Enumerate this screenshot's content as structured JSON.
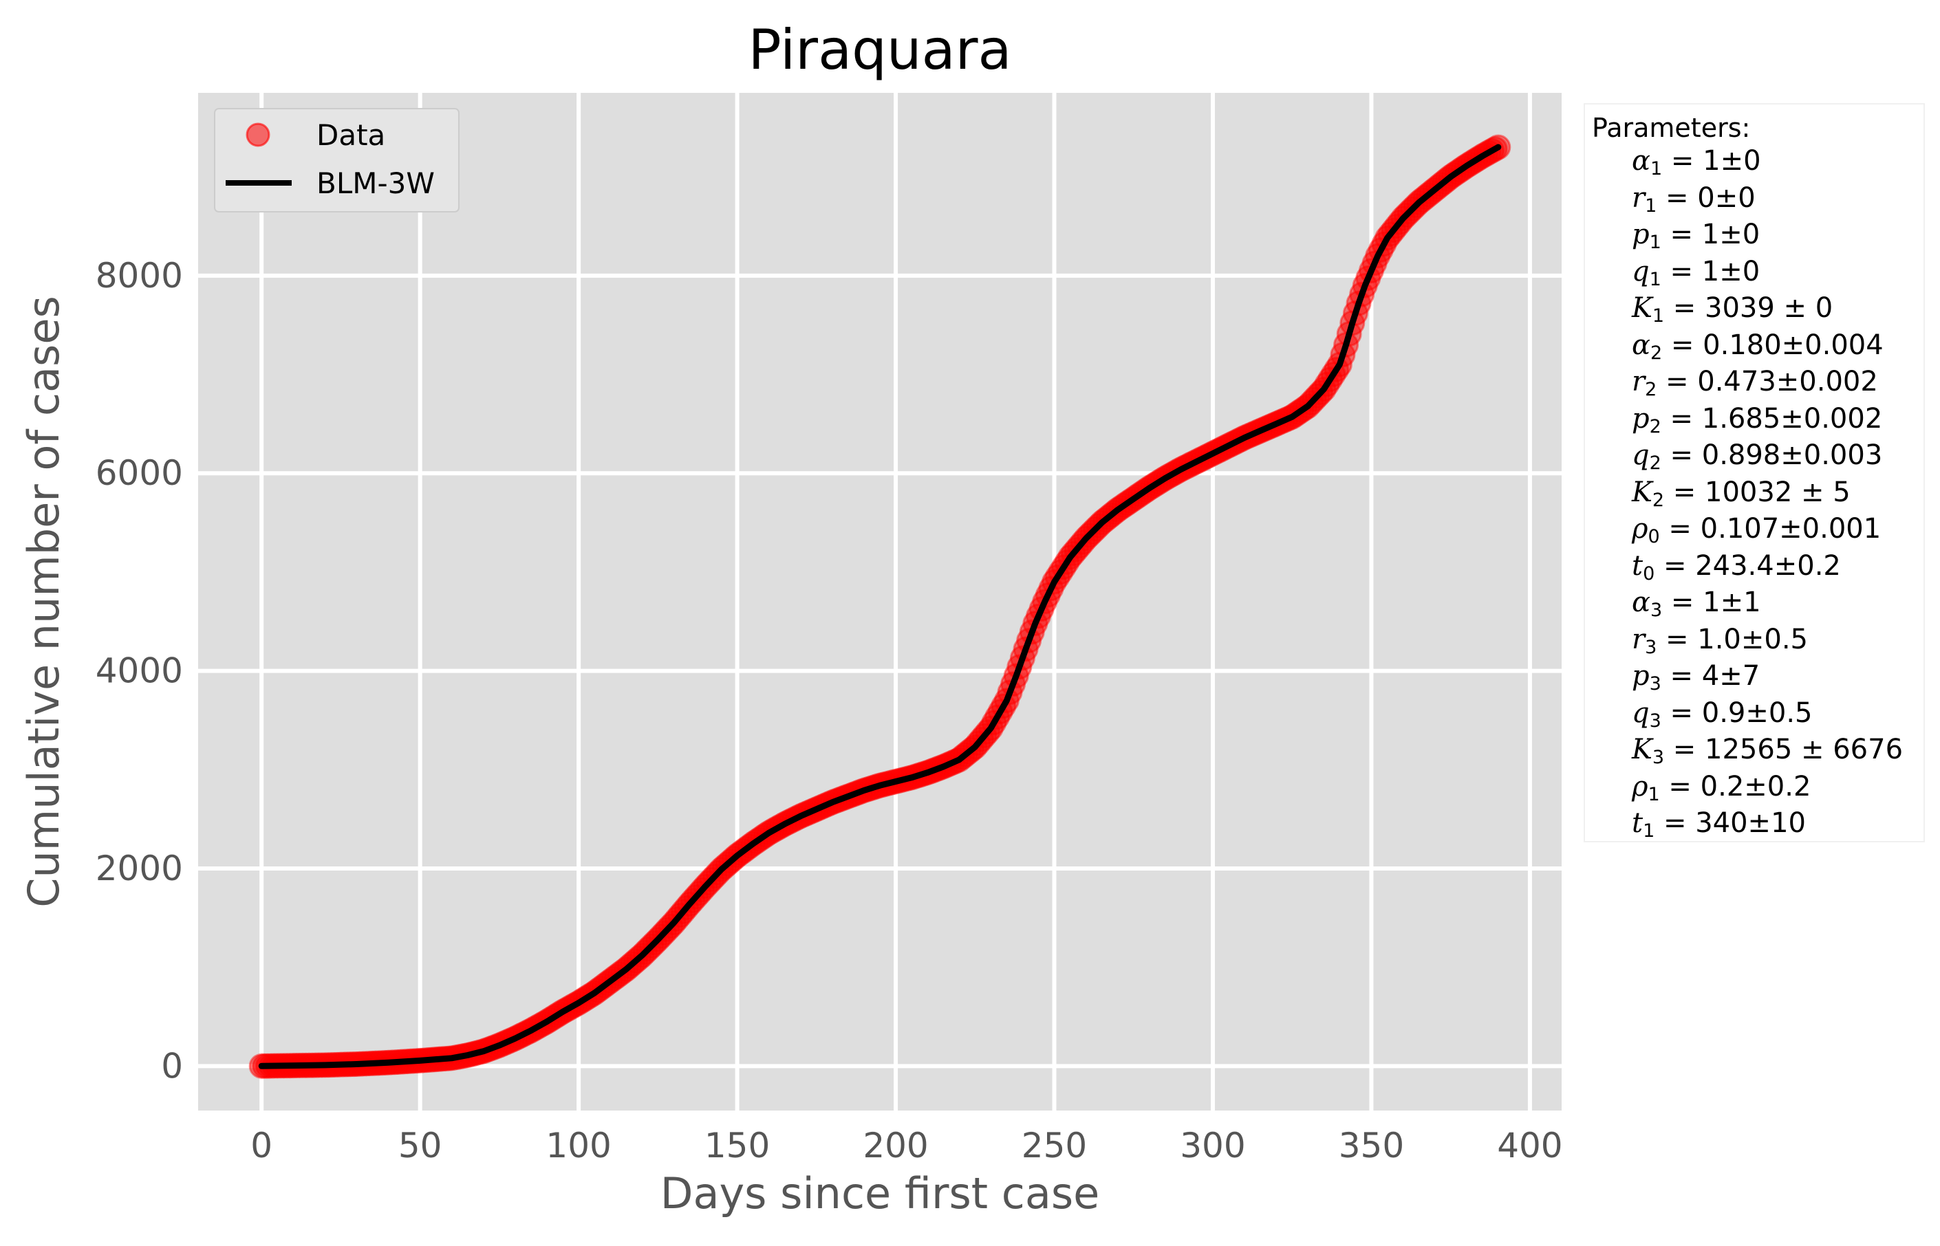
{
  "chart_data": {
    "type": "scatter",
    "title": "Piraquara",
    "xlabel": "Days since first case",
    "ylabel": "Cumulative  number of cases",
    "xlim": [
      -20,
      410
    ],
    "ylim": [
      -450,
      9850
    ],
    "x_ticks": [
      0,
      50,
      100,
      150,
      200,
      250,
      300,
      350,
      400
    ],
    "y_ticks": [
      0,
      2000,
      4000,
      6000,
      8000
    ],
    "grid": true,
    "legend_position": "top-left",
    "series": [
      {
        "name": "Data",
        "kind": "markers",
        "color": "#ff0000",
        "x": [
          0,
          10,
          20,
          30,
          40,
          50,
          60,
          65,
          70,
          75,
          80,
          85,
          90,
          95,
          100,
          105,
          110,
          115,
          120,
          125,
          130,
          135,
          140,
          145,
          150,
          155,
          160,
          165,
          170,
          175,
          180,
          185,
          190,
          195,
          200,
          205,
          210,
          215,
          220,
          225,
          230,
          235,
          238,
          241,
          244,
          247,
          250,
          255,
          260,
          265,
          270,
          275,
          280,
          285,
          290,
          295,
          300,
          305,
          310,
          315,
          320,
          325,
          330,
          335,
          340,
          342,
          344,
          346,
          348,
          350,
          352,
          355,
          360,
          365,
          370,
          375,
          380,
          385,
          390
        ],
        "y": [
          0,
          5,
          10,
          20,
          35,
          55,
          80,
          110,
          150,
          210,
          280,
          360,
          450,
          550,
          640,
          740,
          860,
          980,
          1120,
          1280,
          1450,
          1640,
          1820,
          1990,
          2130,
          2250,
          2360,
          2450,
          2530,
          2600,
          2670,
          2730,
          2790,
          2840,
          2880,
          2920,
          2970,
          3030,
          3100,
          3230,
          3420,
          3700,
          3950,
          4220,
          4480,
          4700,
          4900,
          5150,
          5340,
          5500,
          5630,
          5740,
          5850,
          5950,
          6040,
          6120,
          6200,
          6280,
          6360,
          6430,
          6500,
          6570,
          6680,
          6850,
          7100,
          7300,
          7520,
          7720,
          7900,
          8050,
          8200,
          8380,
          8580,
          8740,
          8870,
          9000,
          9110,
          9210,
          9300
        ]
      },
      {
        "name": "BLM-3W",
        "kind": "line",
        "color": "#000000",
        "x": [
          0,
          10,
          20,
          30,
          40,
          50,
          60,
          65,
          70,
          75,
          80,
          85,
          90,
          95,
          100,
          105,
          110,
          115,
          120,
          125,
          130,
          135,
          140,
          145,
          150,
          155,
          160,
          165,
          170,
          175,
          180,
          185,
          190,
          195,
          200,
          205,
          210,
          215,
          220,
          225,
          230,
          235,
          238,
          241,
          244,
          247,
          250,
          255,
          260,
          265,
          270,
          275,
          280,
          285,
          290,
          295,
          300,
          305,
          310,
          315,
          320,
          325,
          330,
          335,
          340,
          342,
          344,
          346,
          348,
          350,
          352,
          355,
          360,
          365,
          370,
          375,
          380,
          385,
          390
        ],
        "y": [
          0,
          5,
          10,
          20,
          35,
          55,
          80,
          110,
          150,
          210,
          280,
          360,
          450,
          550,
          640,
          740,
          860,
          980,
          1120,
          1280,
          1450,
          1640,
          1820,
          1990,
          2130,
          2250,
          2360,
          2450,
          2530,
          2600,
          2670,
          2730,
          2790,
          2840,
          2880,
          2920,
          2970,
          3030,
          3100,
          3230,
          3420,
          3700,
          3950,
          4220,
          4480,
          4700,
          4900,
          5150,
          5340,
          5500,
          5630,
          5740,
          5850,
          5950,
          6040,
          6120,
          6200,
          6280,
          6360,
          6430,
          6500,
          6570,
          6680,
          6850,
          7100,
          7300,
          7520,
          7720,
          7900,
          8050,
          8200,
          8380,
          8580,
          8740,
          8870,
          9000,
          9110,
          9210,
          9300
        ]
      }
    ]
  },
  "parameters_box": {
    "title": "Parameters:",
    "items": [
      {
        "sym": "α",
        "sub": "1",
        "rest": " = 1±0"
      },
      {
        "sym": "r",
        "sub": "1",
        "rest": " = 0±0"
      },
      {
        "sym": "p",
        "sub": "1",
        "rest": " = 1±0"
      },
      {
        "sym": "q",
        "sub": "1",
        "rest": " = 1±0"
      },
      {
        "sym": "K",
        "sub": "1",
        "rest": " = 3039 ± 0"
      },
      {
        "sym": "α",
        "sub": "2",
        "rest": " = 0.180±0.004"
      },
      {
        "sym": "r",
        "sub": "2",
        "rest": " = 0.473±0.002"
      },
      {
        "sym": "p",
        "sub": "2",
        "rest": " = 1.685±0.002"
      },
      {
        "sym": "q",
        "sub": "2",
        "rest": " = 0.898±0.003"
      },
      {
        "sym": "K",
        "sub": "2",
        "rest": " = 10032 ± 5"
      },
      {
        "sym": "ρ",
        "sub": "0",
        "rest": " = 0.107±0.001"
      },
      {
        "sym": "t",
        "sub": "0",
        "rest": " = 243.4±0.2"
      },
      {
        "sym": "α",
        "sub": "3",
        "rest": " = 1±1"
      },
      {
        "sym": "r",
        "sub": "3",
        "rest": " = 1.0±0.5"
      },
      {
        "sym": "p",
        "sub": "3",
        "rest": " = 4±7"
      },
      {
        "sym": "q",
        "sub": "3",
        "rest": " = 0.9±0.5"
      },
      {
        "sym": "K",
        "sub": "3",
        "rest": " = 12565 ± 6676"
      },
      {
        "sym": "ρ",
        "sub": "1",
        "rest": " = 0.2±0.2"
      },
      {
        "sym": "t",
        "sub": "1",
        "rest": " = 340±10"
      }
    ]
  }
}
